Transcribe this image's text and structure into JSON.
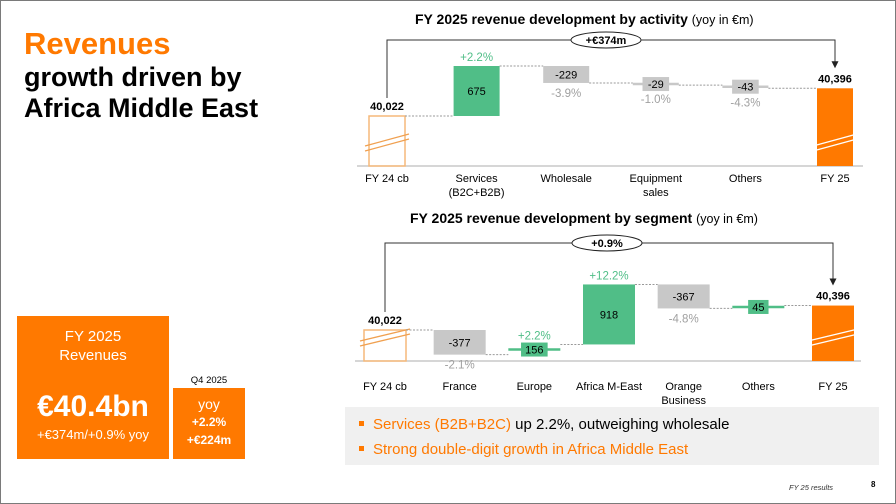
{
  "headline": {
    "title": "Revenues",
    "subtitle_line1": "growth driven by",
    "subtitle_line2": "Africa Middle East"
  },
  "kpi_fy": {
    "label_line1": "FY 2025",
    "label_line2": "Revenues",
    "value": "€40.4bn",
    "change": "+€374m/+0.9% yoy"
  },
  "kpi_q4": {
    "label": "Q4 2025",
    "line1": "yoy",
    "line2": "+2.2%",
    "line3": "+€224m"
  },
  "colors": {
    "orange": "#ff7900",
    "green": "#50be87",
    "grey": "#c8c8c8",
    "grey_text": "#a0a0a0"
  },
  "chart_data": [
    {
      "type": "waterfall",
      "title": "FY 2025 revenue development by activity",
      "title_unit": "(yoy in €m)",
      "total_change_label": "+€374m",
      "start": {
        "label": "FY 24 cb",
        "value": 40022,
        "value_label": "40,022"
      },
      "end": {
        "label": "FY 25",
        "value": 40396,
        "value_label": "40,396"
      },
      "steps": [
        {
          "label": "Services",
          "label2": "(B2C+B2B)",
          "value": 675,
          "value_label": "675",
          "pct_label": "+2.2%"
        },
        {
          "label": "Wholesale",
          "label2": "",
          "value": -229,
          "value_label": "-229",
          "pct_label": "-3.9%"
        },
        {
          "label": "Equipment",
          "label2": "sales",
          "value": -29,
          "value_label": "-29",
          "pct_label": "-1.0%"
        },
        {
          "label": "Others",
          "label2": "",
          "value": -43,
          "value_label": "-43",
          "pct_label": "-4.3%"
        }
      ]
    },
    {
      "type": "waterfall",
      "title": "FY 2025 revenue development by segment",
      "title_unit": "(yoy in €m)",
      "total_change_label": "+0.9%",
      "start": {
        "label": "FY 24 cb",
        "value": 40022,
        "value_label": "40,022"
      },
      "end": {
        "label": "FY 25",
        "value": 40396,
        "value_label": "40,396"
      },
      "steps": [
        {
          "label": "France",
          "label2": "",
          "value": -377,
          "value_label": "-377",
          "pct_label": "-2.1%"
        },
        {
          "label": "Europe",
          "label2": "",
          "value": 156,
          "value_label": "156",
          "pct_label": "+2.2%"
        },
        {
          "label": "Africa M-East",
          "label2": "",
          "value": 918,
          "value_label": "918",
          "pct_label": "+12.2%"
        },
        {
          "label": "Orange",
          "label2": "Business",
          "value": -367,
          "value_label": "-367",
          "pct_label": "-4.8%"
        },
        {
          "label": "Others",
          "label2": "",
          "value": 45,
          "value_label": "45",
          "pct_label": ""
        }
      ]
    }
  ],
  "bullets": [
    {
      "highlight": "Services (B2B+B2C)",
      "rest": " up 2.2%, outweighing wholesale"
    },
    {
      "highlight": "Strong double-digit growth in Africa Middle East",
      "rest": ""
    }
  ],
  "footer": {
    "text": "FY 25 results",
    "page": "8"
  }
}
